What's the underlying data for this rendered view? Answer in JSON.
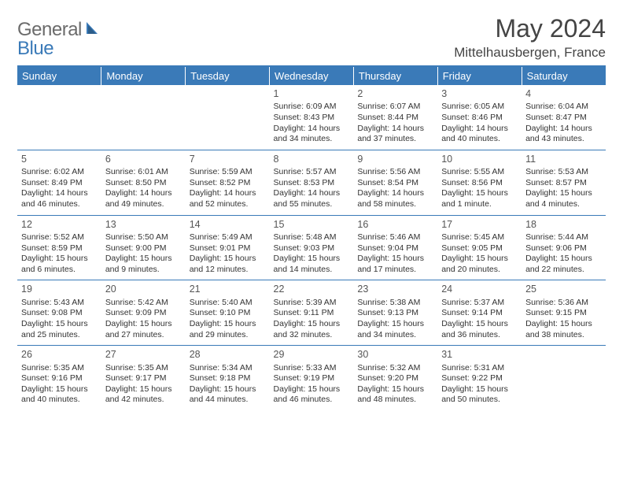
{
  "logo": {
    "part1": "General",
    "part2": "Blue"
  },
  "title": "May 2024",
  "location": "Mittelhausbergen, France",
  "weekdays": [
    "Sunday",
    "Monday",
    "Tuesday",
    "Wednesday",
    "Thursday",
    "Friday",
    "Saturday"
  ],
  "colors": {
    "accent": "#3a7ab8",
    "text": "#333333",
    "logo_gray": "#6b6b6b"
  },
  "weeks": [
    [
      null,
      null,
      null,
      {
        "n": "1",
        "sr": "Sunrise: 6:09 AM",
        "ss": "Sunset: 8:43 PM",
        "d1": "Daylight: 14 hours",
        "d2": "and 34 minutes."
      },
      {
        "n": "2",
        "sr": "Sunrise: 6:07 AM",
        "ss": "Sunset: 8:44 PM",
        "d1": "Daylight: 14 hours",
        "d2": "and 37 minutes."
      },
      {
        "n": "3",
        "sr": "Sunrise: 6:05 AM",
        "ss": "Sunset: 8:46 PM",
        "d1": "Daylight: 14 hours",
        "d2": "and 40 minutes."
      },
      {
        "n": "4",
        "sr": "Sunrise: 6:04 AM",
        "ss": "Sunset: 8:47 PM",
        "d1": "Daylight: 14 hours",
        "d2": "and 43 minutes."
      }
    ],
    [
      {
        "n": "5",
        "sr": "Sunrise: 6:02 AM",
        "ss": "Sunset: 8:49 PM",
        "d1": "Daylight: 14 hours",
        "d2": "and 46 minutes."
      },
      {
        "n": "6",
        "sr": "Sunrise: 6:01 AM",
        "ss": "Sunset: 8:50 PM",
        "d1": "Daylight: 14 hours",
        "d2": "and 49 minutes."
      },
      {
        "n": "7",
        "sr": "Sunrise: 5:59 AM",
        "ss": "Sunset: 8:52 PM",
        "d1": "Daylight: 14 hours",
        "d2": "and 52 minutes."
      },
      {
        "n": "8",
        "sr": "Sunrise: 5:57 AM",
        "ss": "Sunset: 8:53 PM",
        "d1": "Daylight: 14 hours",
        "d2": "and 55 minutes."
      },
      {
        "n": "9",
        "sr": "Sunrise: 5:56 AM",
        "ss": "Sunset: 8:54 PM",
        "d1": "Daylight: 14 hours",
        "d2": "and 58 minutes."
      },
      {
        "n": "10",
        "sr": "Sunrise: 5:55 AM",
        "ss": "Sunset: 8:56 PM",
        "d1": "Daylight: 15 hours",
        "d2": "and 1 minute."
      },
      {
        "n": "11",
        "sr": "Sunrise: 5:53 AM",
        "ss": "Sunset: 8:57 PM",
        "d1": "Daylight: 15 hours",
        "d2": "and 4 minutes."
      }
    ],
    [
      {
        "n": "12",
        "sr": "Sunrise: 5:52 AM",
        "ss": "Sunset: 8:59 PM",
        "d1": "Daylight: 15 hours",
        "d2": "and 6 minutes."
      },
      {
        "n": "13",
        "sr": "Sunrise: 5:50 AM",
        "ss": "Sunset: 9:00 PM",
        "d1": "Daylight: 15 hours",
        "d2": "and 9 minutes."
      },
      {
        "n": "14",
        "sr": "Sunrise: 5:49 AM",
        "ss": "Sunset: 9:01 PM",
        "d1": "Daylight: 15 hours",
        "d2": "and 12 minutes."
      },
      {
        "n": "15",
        "sr": "Sunrise: 5:48 AM",
        "ss": "Sunset: 9:03 PM",
        "d1": "Daylight: 15 hours",
        "d2": "and 14 minutes."
      },
      {
        "n": "16",
        "sr": "Sunrise: 5:46 AM",
        "ss": "Sunset: 9:04 PM",
        "d1": "Daylight: 15 hours",
        "d2": "and 17 minutes."
      },
      {
        "n": "17",
        "sr": "Sunrise: 5:45 AM",
        "ss": "Sunset: 9:05 PM",
        "d1": "Daylight: 15 hours",
        "d2": "and 20 minutes."
      },
      {
        "n": "18",
        "sr": "Sunrise: 5:44 AM",
        "ss": "Sunset: 9:06 PM",
        "d1": "Daylight: 15 hours",
        "d2": "and 22 minutes."
      }
    ],
    [
      {
        "n": "19",
        "sr": "Sunrise: 5:43 AM",
        "ss": "Sunset: 9:08 PM",
        "d1": "Daylight: 15 hours",
        "d2": "and 25 minutes."
      },
      {
        "n": "20",
        "sr": "Sunrise: 5:42 AM",
        "ss": "Sunset: 9:09 PM",
        "d1": "Daylight: 15 hours",
        "d2": "and 27 minutes."
      },
      {
        "n": "21",
        "sr": "Sunrise: 5:40 AM",
        "ss": "Sunset: 9:10 PM",
        "d1": "Daylight: 15 hours",
        "d2": "and 29 minutes."
      },
      {
        "n": "22",
        "sr": "Sunrise: 5:39 AM",
        "ss": "Sunset: 9:11 PM",
        "d1": "Daylight: 15 hours",
        "d2": "and 32 minutes."
      },
      {
        "n": "23",
        "sr": "Sunrise: 5:38 AM",
        "ss": "Sunset: 9:13 PM",
        "d1": "Daylight: 15 hours",
        "d2": "and 34 minutes."
      },
      {
        "n": "24",
        "sr": "Sunrise: 5:37 AM",
        "ss": "Sunset: 9:14 PM",
        "d1": "Daylight: 15 hours",
        "d2": "and 36 minutes."
      },
      {
        "n": "25",
        "sr": "Sunrise: 5:36 AM",
        "ss": "Sunset: 9:15 PM",
        "d1": "Daylight: 15 hours",
        "d2": "and 38 minutes."
      }
    ],
    [
      {
        "n": "26",
        "sr": "Sunrise: 5:35 AM",
        "ss": "Sunset: 9:16 PM",
        "d1": "Daylight: 15 hours",
        "d2": "and 40 minutes."
      },
      {
        "n": "27",
        "sr": "Sunrise: 5:35 AM",
        "ss": "Sunset: 9:17 PM",
        "d1": "Daylight: 15 hours",
        "d2": "and 42 minutes."
      },
      {
        "n": "28",
        "sr": "Sunrise: 5:34 AM",
        "ss": "Sunset: 9:18 PM",
        "d1": "Daylight: 15 hours",
        "d2": "and 44 minutes."
      },
      {
        "n": "29",
        "sr": "Sunrise: 5:33 AM",
        "ss": "Sunset: 9:19 PM",
        "d1": "Daylight: 15 hours",
        "d2": "and 46 minutes."
      },
      {
        "n": "30",
        "sr": "Sunrise: 5:32 AM",
        "ss": "Sunset: 9:20 PM",
        "d1": "Daylight: 15 hours",
        "d2": "and 48 minutes."
      },
      {
        "n": "31",
        "sr": "Sunrise: 5:31 AM",
        "ss": "Sunset: 9:22 PM",
        "d1": "Daylight: 15 hours",
        "d2": "and 50 minutes."
      },
      null
    ]
  ]
}
